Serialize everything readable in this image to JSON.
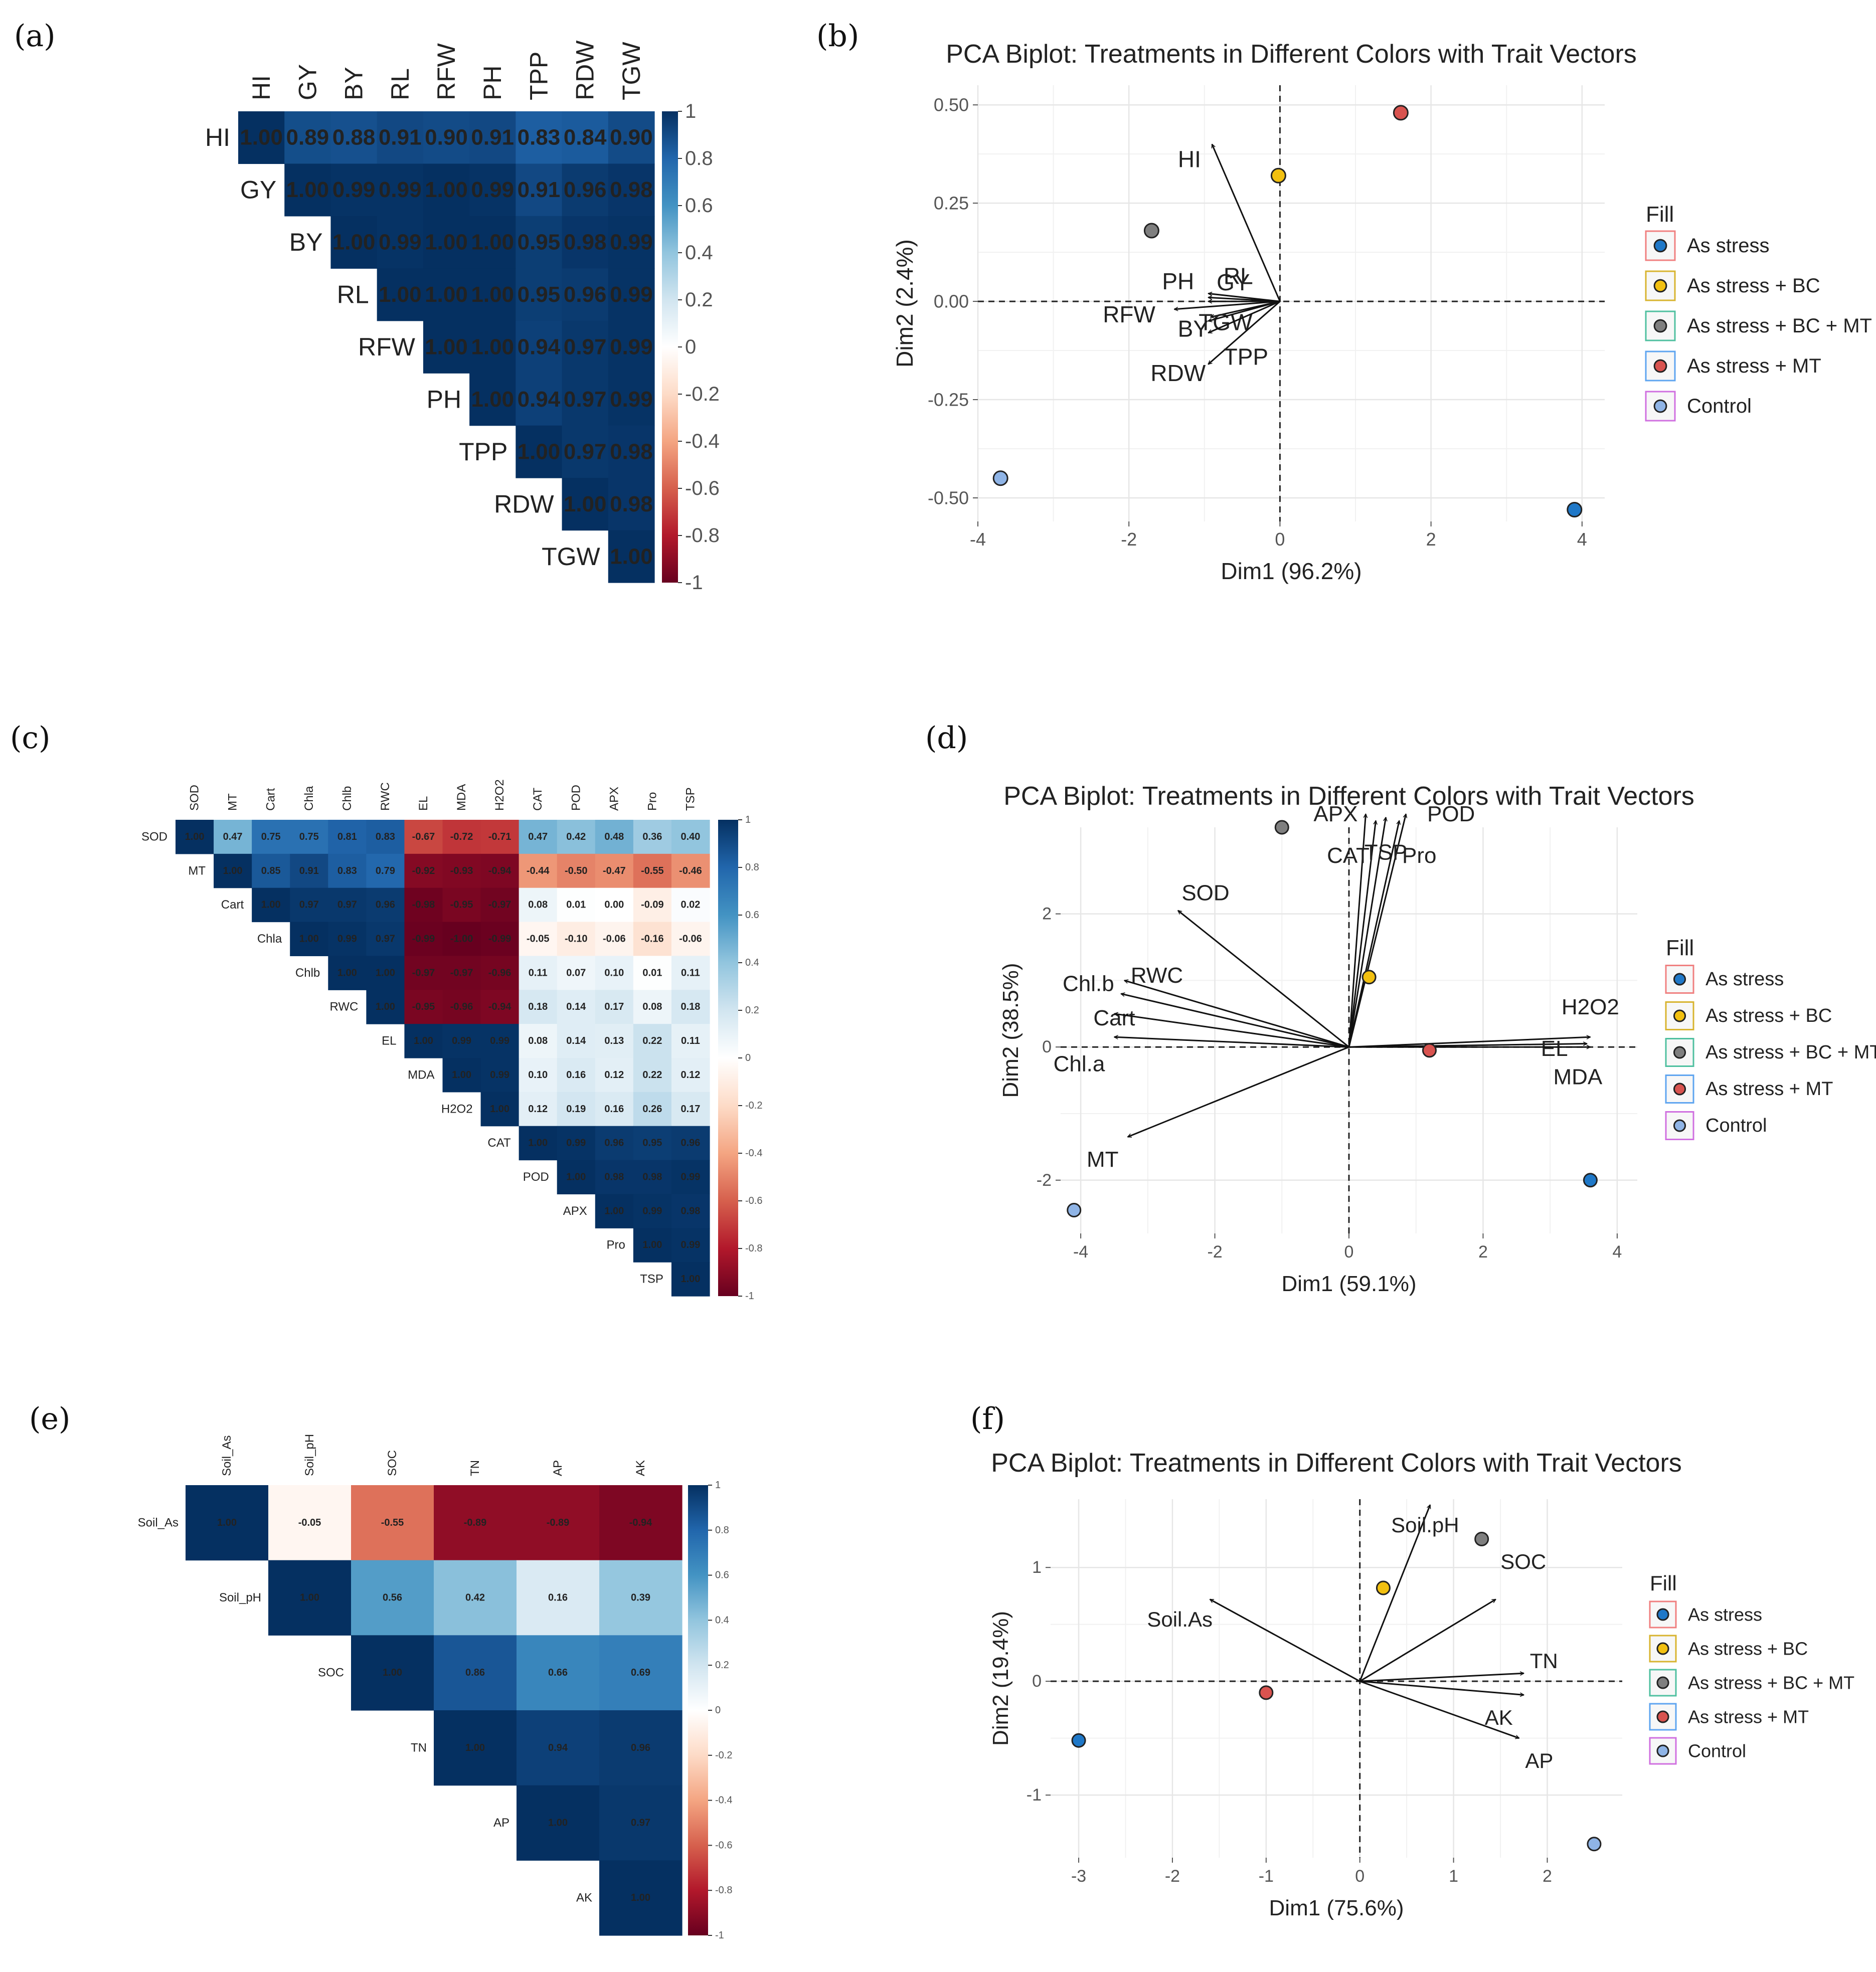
{
  "panels": [
    {
      "id": "a",
      "label": "(a)"
    },
    {
      "id": "b",
      "label": "(b)"
    },
    {
      "id": "c",
      "label": "(c)"
    },
    {
      "id": "d",
      "label": "(d)"
    },
    {
      "id": "e",
      "label": "(e)"
    },
    {
      "id": "f",
      "label": "(f)"
    }
  ],
  "colors": {
    "As stress": "#1f78c8",
    "As stress + BC": "#f2c010",
    "As stress + BC + MT": "#7f7f7f",
    "As stress + MT": "#d9534f",
    "Control": "#8fb4e6",
    "neg_strong": "#67001f",
    "neutral": "#ffffff",
    "pos_strong": "#053061"
  },
  "chart_data": [
    {
      "panel": "a",
      "type": "heatmap",
      "variables": [
        "HI",
        "GY",
        "BY",
        "RL",
        "RFW",
        "PH",
        "TPP",
        "RDW",
        "TGW"
      ],
      "matrix_upper": [
        [
          "1.00",
          "0.89",
          "0.88",
          "0.91",
          "0.90",
          "0.91",
          "0.83",
          "0.84",
          "0.90"
        ],
        [
          "1.00",
          "0.99",
          "0.99",
          "1.00",
          "0.99",
          "0.91",
          "0.96",
          "0.98"
        ],
        [
          "1.00",
          "0.99",
          "1.00",
          "1.00",
          "0.95",
          "0.98",
          "0.99"
        ],
        [
          "1.00",
          "1.00",
          "1.00",
          "0.95",
          "0.96",
          "0.99"
        ],
        [
          "1.00",
          "1.00",
          "0.94",
          "0.97",
          "0.99"
        ],
        [
          "1.00",
          "0.94",
          "0.97",
          "0.99"
        ],
        [
          "1.00",
          "0.97",
          "0.98"
        ],
        [
          "1.00",
          "0.98"
        ],
        [
          "1.00"
        ]
      ],
      "colorbar_ticks": [
        "1",
        "0.8",
        "0.6",
        "0.4",
        "0.2",
        "0",
        "-0.2",
        "-0.4",
        "-0.6",
        "-0.8",
        "-1"
      ]
    },
    {
      "panel": "b",
      "type": "scatter",
      "title": "PCA Biplot: Treatments in Different Colors with Trait Vectors",
      "xlabel": "Dim1 (96.2%)",
      "ylabel": "Dim2 (2.4%)",
      "xlim": [
        -4,
        4.3
      ],
      "ylim": [
        -0.56,
        0.55
      ],
      "xticks": [
        "-4",
        "-2",
        "0",
        "2",
        "4"
      ],
      "yticks": [
        "0.50",
        "0.25",
        "0.00",
        "-0.25",
        "-0.50"
      ],
      "points": [
        {
          "group": "As stress",
          "x": 3.9,
          "y": -0.53
        },
        {
          "group": "As stress + BC",
          "x": -0.02,
          "y": 0.32
        },
        {
          "group": "As stress + BC + MT",
          "x": -1.7,
          "y": 0.18
        },
        {
          "group": "As stress + MT",
          "x": 1.6,
          "y": 0.48
        },
        {
          "group": "Control",
          "x": -3.7,
          "y": -0.45
        }
      ],
      "vectors": [
        {
          "name": "HI",
          "x": -0.9,
          "y": 0.4
        },
        {
          "name": "RL",
          "x": -0.95,
          "y": 0.02
        },
        {
          "name": "GY",
          "x": -0.95,
          "y": 0.01
        },
        {
          "name": "PH",
          "x": -0.95,
          "y": 0.0
        },
        {
          "name": "RFW",
          "x": -1.4,
          "y": -0.02
        },
        {
          "name": "TGW",
          "x": -0.92,
          "y": -0.04
        },
        {
          "name": "BY",
          "x": -0.95,
          "y": -0.05
        },
        {
          "name": "TPP",
          "x": -0.95,
          "y": -0.16
        },
        {
          "name": "RDW",
          "x": -0.95,
          "y": -0.08
        }
      ],
      "legend_title": "Fill",
      "legend": [
        "As stress",
        "As stress + BC",
        "As stress + BC + MT",
        "As stress + MT",
        "Control"
      ]
    },
    {
      "panel": "c",
      "type": "heatmap",
      "variables": [
        "SOD",
        "MT",
        "Cart",
        "Chla",
        "Chlb",
        "RWC",
        "EL",
        "MDA",
        "H2O2",
        "CAT",
        "POD",
        "APX",
        "Pro",
        "TSP"
      ],
      "matrix_upper": [
        [
          "1.00",
          "0.47",
          "0.75",
          "0.75",
          "0.81",
          "0.83",
          "-0.67",
          "-0.72",
          "-0.71",
          "0.47",
          "0.42",
          "0.48",
          "0.36",
          "0.40"
        ],
        [
          "1.00",
          "0.85",
          "0.91",
          "0.83",
          "0.79",
          "-0.92",
          "-0.93",
          "-0.94",
          "-0.44",
          "-0.50",
          "-0.47",
          "-0.55",
          "-0.46"
        ],
        [
          "1.00",
          "0.97",
          "0.97",
          "0.96",
          "-0.98",
          "-0.95",
          "-0.97",
          "0.08",
          "0.01",
          "0.00",
          "-0.09",
          "0.02"
        ],
        [
          "1.00",
          "0.99",
          "0.97",
          "-0.99",
          "-1.00",
          "-0.99",
          "-0.05",
          "-0.10",
          "-0.06",
          "-0.16",
          "-0.06"
        ],
        [
          "1.00",
          "1.00",
          "-0.97",
          "-0.97",
          "-0.96",
          "0.11",
          "0.07",
          "0.10",
          "0.01",
          "0.11"
        ],
        [
          "1.00",
          "-0.95",
          "-0.96",
          "-0.94",
          "0.18",
          "0.14",
          "0.17",
          "0.08",
          "0.18"
        ],
        [
          "1.00",
          "0.99",
          "0.99",
          "0.08",
          "0.14",
          "0.13",
          "0.22",
          "0.11"
        ],
        [
          "1.00",
          "0.99",
          "0.10",
          "0.16",
          "0.12",
          "0.22",
          "0.12"
        ],
        [
          "1.00",
          "0.12",
          "0.19",
          "0.16",
          "0.26",
          "0.17"
        ],
        [
          "1.00",
          "0.99",
          "0.96",
          "0.95",
          "0.96"
        ],
        [
          "1.00",
          "0.98",
          "0.98",
          "0.99"
        ],
        [
          "1.00",
          "0.99",
          "0.98"
        ],
        [
          "1.00",
          "0.99"
        ],
        [
          "1.00"
        ]
      ],
      "colorbar_ticks": [
        "1",
        "0.8",
        "0.6",
        "0.4",
        "0.2",
        "0",
        "-0.2",
        "-0.4",
        "-0.6",
        "-0.8",
        "-1"
      ]
    },
    {
      "panel": "d",
      "type": "scatter",
      "title": "PCA Biplot: Treatments in Different Colors with Trait Vectors",
      "xlabel": "Dim1 (59.1%)",
      "ylabel": "Dim2 (38.5%)",
      "xlim": [
        -4.3,
        4.3
      ],
      "ylim": [
        -2.8,
        3.3
      ],
      "xticks": [
        "-4",
        "-2",
        "0",
        "2",
        "4"
      ],
      "yticks": [
        "2",
        "0",
        "-2"
      ],
      "points": [
        {
          "group": "As stress",
          "x": 3.6,
          "y": -2.0
        },
        {
          "group": "As stress + BC",
          "x": 0.3,
          "y": 1.05
        },
        {
          "group": "As stress + BC + MT",
          "x": -1.0,
          "y": 3.3
        },
        {
          "group": "As stress + MT",
          "x": 1.2,
          "y": -0.05
        },
        {
          "group": "Control",
          "x": -4.1,
          "y": -2.45
        }
      ],
      "vectors": [
        {
          "name": "APX",
          "x": 0.25,
          "y": 3.5
        },
        {
          "name": "POD",
          "x": 0.85,
          "y": 3.5
        },
        {
          "name": "CAT",
          "x": 0.4,
          "y": 3.4
        },
        {
          "name": "TSP",
          "x": 0.55,
          "y": 3.45
        },
        {
          "name": "Pro",
          "x": 0.75,
          "y": 3.4
        },
        {
          "name": "SOD",
          "x": -2.55,
          "y": 2.05
        },
        {
          "name": "RWC",
          "x": -3.35,
          "y": 1.0
        },
        {
          "name": "Chl.b",
          "x": -3.4,
          "y": 0.8
        },
        {
          "name": "Cart",
          "x": -3.5,
          "y": 0.15
        },
        {
          "name": "Chl.a",
          "x": -3.5,
          "y": 0.5
        },
        {
          "name": "MT",
          "x": -3.3,
          "y": -1.35
        },
        {
          "name": "H2O2",
          "x": 3.6,
          "y": 0.15
        },
        {
          "name": "EL",
          "x": 3.55,
          "y": 0.05
        },
        {
          "name": "MDA",
          "x": 3.6,
          "y": 0.0
        }
      ],
      "legend_title": "Fill",
      "legend": [
        "As stress",
        "As stress + BC",
        "As stress + BC + MT",
        "As stress + MT",
        "Control"
      ]
    },
    {
      "panel": "e",
      "type": "heatmap",
      "variables": [
        "Soil_As",
        "Soil_pH",
        "SOC",
        "TN",
        "AP",
        "AK"
      ],
      "matrix_upper": [
        [
          "1.00",
          "-0.05",
          "-0.55",
          "-0.89",
          "-0.89",
          "-0.94"
        ],
        [
          "1.00",
          "0.56",
          "0.42",
          "0.16",
          "0.39"
        ],
        [
          "1.00",
          "0.86",
          "0.66",
          "0.69"
        ],
        [
          "1.00",
          "0.94",
          "0.96"
        ],
        [
          "1.00",
          "0.97"
        ],
        [
          "1.00"
        ]
      ],
      "colorbar_ticks": [
        "1",
        "0.8",
        "0.6",
        "0.4",
        "0.2",
        "0",
        "-0.2",
        "-0.4",
        "-0.6",
        "-0.8",
        "-1"
      ]
    },
    {
      "panel": "f",
      "type": "scatter",
      "title": "PCA Biplot: Treatments in Different Colors with Trait Vectors",
      "xlabel": "Dim1 (75.6%)",
      "ylabel": "Dim2 (19.4%)",
      "xlim": [
        -3.3,
        2.8
      ],
      "ylim": [
        -1.55,
        1.6
      ],
      "xticks": [
        "-3",
        "-2",
        "-1",
        "0",
        "1",
        "2"
      ],
      "yticks": [
        "1",
        "0",
        "-1"
      ],
      "points": [
        {
          "group": "As stress",
          "x": -3.0,
          "y": -0.52
        },
        {
          "group": "As stress + BC",
          "x": 0.25,
          "y": 0.82
        },
        {
          "group": "As stress + BC + MT",
          "x": 1.3,
          "y": 1.25
        },
        {
          "group": "As stress + MT",
          "x": -1.0,
          "y": -0.1
        },
        {
          "group": "Control",
          "x": 2.5,
          "y": -1.43
        }
      ],
      "vectors": [
        {
          "name": "Soil.pH",
          "x": 0.75,
          "y": 1.55
        },
        {
          "name": "Soil.As",
          "x": -1.6,
          "y": 0.72
        },
        {
          "name": "SOC",
          "x": 1.45,
          "y": 0.72
        },
        {
          "name": "TN",
          "x": 1.75,
          "y": 0.07
        },
        {
          "name": "AK",
          "x": 1.75,
          "y": -0.12
        },
        {
          "name": "AP",
          "x": 1.7,
          "y": -0.5
        }
      ],
      "legend_title": "Fill",
      "legend": [
        "As stress",
        "As stress + BC",
        "As stress + BC + MT",
        "As stress + MT",
        "Control"
      ]
    }
  ]
}
